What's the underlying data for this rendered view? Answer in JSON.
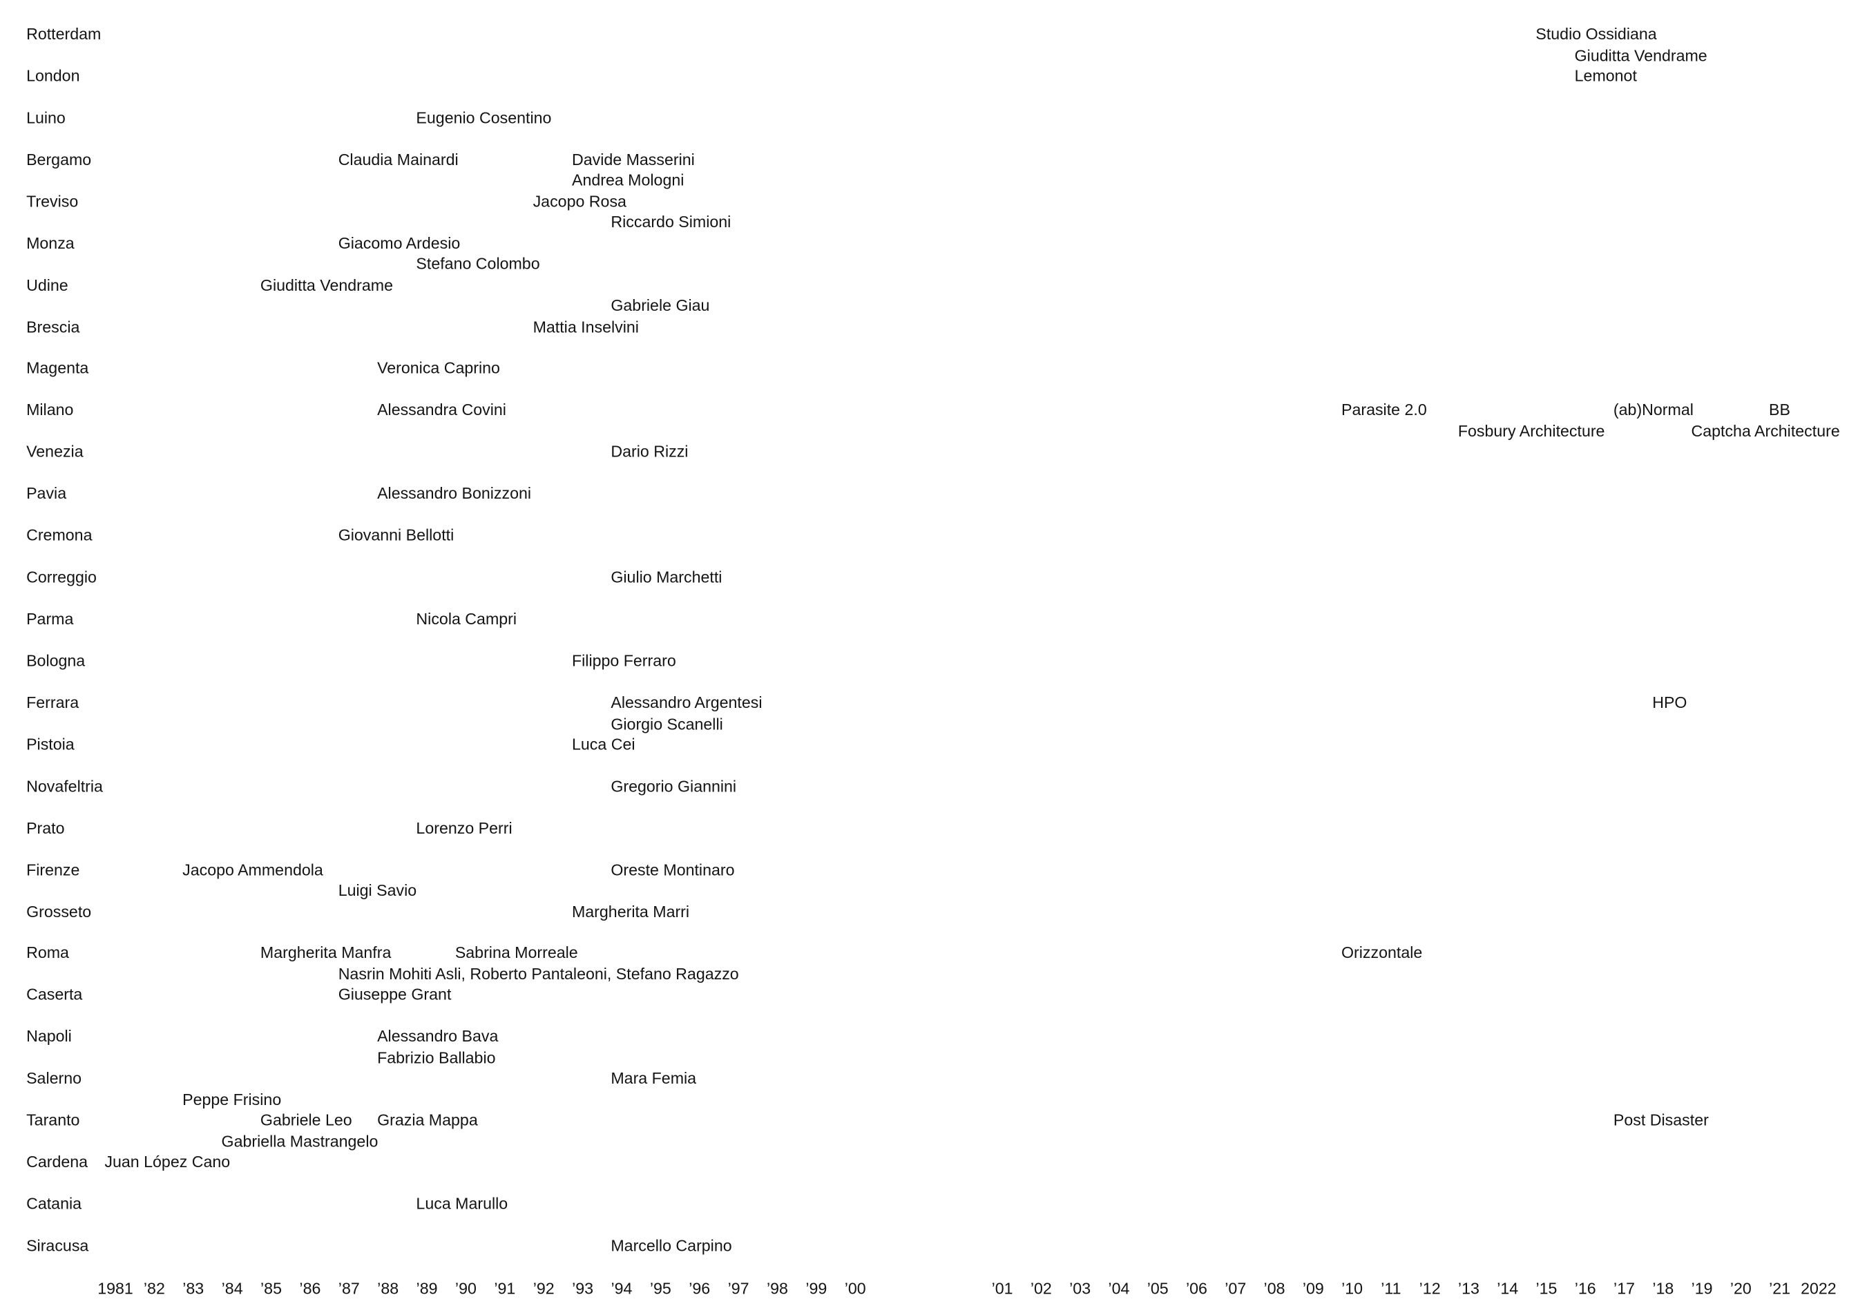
{
  "page": {
    "background_color": "#ffffff",
    "text_color": "#141414"
  },
  "chart_data": {
    "type": "scatter",
    "title": "",
    "xlabel": "",
    "ylabel": "",
    "xlim": [
      1981,
      2022
    ],
    "x_axis_break_after_year": 2000,
    "grid": false,
    "legend": "none",
    "x_axis": {
      "segments": [
        {
          "start_year": 1981,
          "end_year": 2000,
          "labels": [
            "1981",
            "’82",
            "’83",
            "’84",
            "’85",
            "’86",
            "’87",
            "’88",
            "’89",
            "’90",
            "’91",
            "’92",
            "’93",
            "’94",
            "’95",
            "’96",
            "’97",
            "’98",
            "’99",
            "’00"
          ]
        },
        {
          "start_year": 2001,
          "end_year": 2022,
          "labels": [
            "’01",
            "’02",
            "’03",
            "’04",
            "’05",
            "’06",
            "’07",
            "’08",
            "’09",
            "’10",
            "’11",
            "’12",
            "’13",
            "’14",
            "’15",
            "’16",
            "’17",
            "’18",
            "’19",
            "’20",
            "’21",
            "2022"
          ]
        }
      ]
    },
    "rows": [
      {
        "city": "Rotterdam",
        "entries": [
          {
            "label": "Studio Ossidiana",
            "year": 2015,
            "line": 0
          },
          {
            "label": "Giuditta Vendrame",
            "year": 2016,
            "line": 1
          }
        ]
      },
      {
        "city": "London",
        "entries": [
          {
            "label": "Lemonot",
            "year": 2016,
            "line": 0
          }
        ]
      },
      {
        "city": "Luino",
        "entries": [
          {
            "label": "Eugenio Cosentino",
            "year": 1989,
            "line": 0
          }
        ]
      },
      {
        "city": "Bergamo",
        "entries": [
          {
            "label": "Claudia Mainardi",
            "year": 1987,
            "line": 0
          },
          {
            "label": "Davide Masserini",
            "year": 1993,
            "line": 0
          },
          {
            "label": "Andrea Mologni",
            "year": 1993,
            "line": 1
          }
        ]
      },
      {
        "city": "Treviso",
        "entries": [
          {
            "label": "Jacopo Rosa",
            "year": 1992,
            "line": 0
          },
          {
            "label": "Riccardo Simioni",
            "year": 1994,
            "line": 1
          }
        ]
      },
      {
        "city": "Monza",
        "entries": [
          {
            "label": "Giacomo Ardesio",
            "year": 1987,
            "line": 0
          },
          {
            "label": "Stefano Colombo",
            "year": 1989,
            "line": 1
          }
        ]
      },
      {
        "city": "Udine",
        "entries": [
          {
            "label": "Giuditta Vendrame",
            "year": 1985,
            "line": 0
          },
          {
            "label": "Gabriele Giau",
            "year": 1994,
            "line": 1
          }
        ]
      },
      {
        "city": "Brescia",
        "entries": [
          {
            "label": "Mattia Inselvini",
            "year": 1992,
            "line": 0
          }
        ]
      },
      {
        "city": "Magenta",
        "entries": [
          {
            "label": "Veronica Caprino",
            "year": 1988,
            "line": 0
          }
        ]
      },
      {
        "city": "Milano",
        "entries": [
          {
            "label": "Alessandra Covini",
            "year": 1988,
            "line": 0
          },
          {
            "label": "Parasite 2.0",
            "year": 2010,
            "line": 0
          },
          {
            "label": "(ab)Normal",
            "year": 2017,
            "line": 0
          },
          {
            "label": "BB",
            "year": 2021,
            "line": 0
          },
          {
            "label": "Fosbury Architecture",
            "year": 2013,
            "line": 1
          },
          {
            "label": "Captcha Architecture",
            "year": 2019,
            "line": 1
          }
        ]
      },
      {
        "city": "Venezia",
        "entries": [
          {
            "label": "Dario Rizzi",
            "year": 1994,
            "line": 0
          }
        ]
      },
      {
        "city": "Pavia",
        "entries": [
          {
            "label": "Alessandro Bonizzoni",
            "year": 1988,
            "line": 0
          }
        ]
      },
      {
        "city": "Cremona",
        "entries": [
          {
            "label": "Giovanni Bellotti",
            "year": 1987,
            "line": 0
          }
        ]
      },
      {
        "city": "Correggio",
        "entries": [
          {
            "label": "Giulio Marchetti",
            "year": 1994,
            "line": 0
          }
        ]
      },
      {
        "city": "Parma",
        "entries": [
          {
            "label": "Nicola Campri",
            "year": 1989,
            "line": 0
          }
        ]
      },
      {
        "city": "Bologna",
        "entries": [
          {
            "label": "Filippo Ferraro",
            "year": 1993,
            "line": 0
          }
        ]
      },
      {
        "city": "Ferrara",
        "entries": [
          {
            "label": "Alessandro Argentesi",
            "year": 1994,
            "line": 0
          },
          {
            "label": "HPO",
            "year": 2018,
            "line": 0
          },
          {
            "label": "Giorgio Scanelli",
            "year": 1994,
            "line": 1
          }
        ]
      },
      {
        "city": "Pistoia",
        "entries": [
          {
            "label": "Luca Cei",
            "year": 1993,
            "line": 0
          }
        ]
      },
      {
        "city": "Novafeltria",
        "entries": [
          {
            "label": "Gregorio Giannini",
            "year": 1994,
            "line": 0
          }
        ]
      },
      {
        "city": "Prato",
        "entries": [
          {
            "label": "Lorenzo Perri",
            "year": 1989,
            "line": 0
          }
        ]
      },
      {
        "city": "Firenze",
        "entries": [
          {
            "label": "Jacopo Ammendola",
            "year": 1983,
            "line": 0
          },
          {
            "label": "Oreste Montinaro",
            "year": 1994,
            "line": 0
          },
          {
            "label": "Luigi Savio",
            "year": 1987,
            "line": 1
          }
        ]
      },
      {
        "city": "Grosseto",
        "entries": [
          {
            "label": "Margherita Marri",
            "year": 1993,
            "line": 0
          }
        ]
      },
      {
        "city": "Roma",
        "entries": [
          {
            "label": "Margherita Manfra",
            "year": 1985,
            "line": 0
          },
          {
            "label": "Sabrina Morreale",
            "year": 1990,
            "line": 0
          },
          {
            "label": "Orizzontale",
            "year": 2010,
            "line": 0
          },
          {
            "label": "Nasrin Mohiti Asli, Roberto Pantaleoni, Stefano Ragazzo",
            "year": 1987,
            "line": 1
          }
        ]
      },
      {
        "city": "Caserta",
        "entries": [
          {
            "label": "Giuseppe Grant",
            "year": 1987,
            "line": 0
          }
        ]
      },
      {
        "city": "Napoli",
        "entries": [
          {
            "label": "Alessandro Bava",
            "year": 1988,
            "line": 0
          },
          {
            "label": "Fabrizio Ballabio",
            "year": 1988,
            "line": 1
          }
        ]
      },
      {
        "city": "Salerno",
        "entries": [
          {
            "label": "Mara Femia",
            "year": 1994,
            "line": 0
          },
          {
            "label": "Peppe Frisino",
            "year": 1983,
            "line": 1
          }
        ]
      },
      {
        "city": "Taranto",
        "entries": [
          {
            "label": "Gabriele Leo",
            "year": 1985,
            "line": 0
          },
          {
            "label": "Grazia Mappa",
            "year": 1988,
            "line": 0
          },
          {
            "label": "Post Disaster",
            "year": 2017,
            "line": 0
          },
          {
            "label": "Gabriella Mastrangelo",
            "year": 1984,
            "line": 1
          }
        ]
      },
      {
        "city": "Cardena",
        "entries": [
          {
            "label": "Juan López Cano",
            "year": 1981,
            "line": 0
          }
        ]
      },
      {
        "city": "Catania",
        "entries": [
          {
            "label": "Luca Marullo",
            "year": 1989,
            "line": 0
          }
        ]
      },
      {
        "city": "Siracusa",
        "entries": [
          {
            "label": "Marcello Carpino",
            "year": 1994,
            "line": 0
          }
        ]
      }
    ]
  }
}
